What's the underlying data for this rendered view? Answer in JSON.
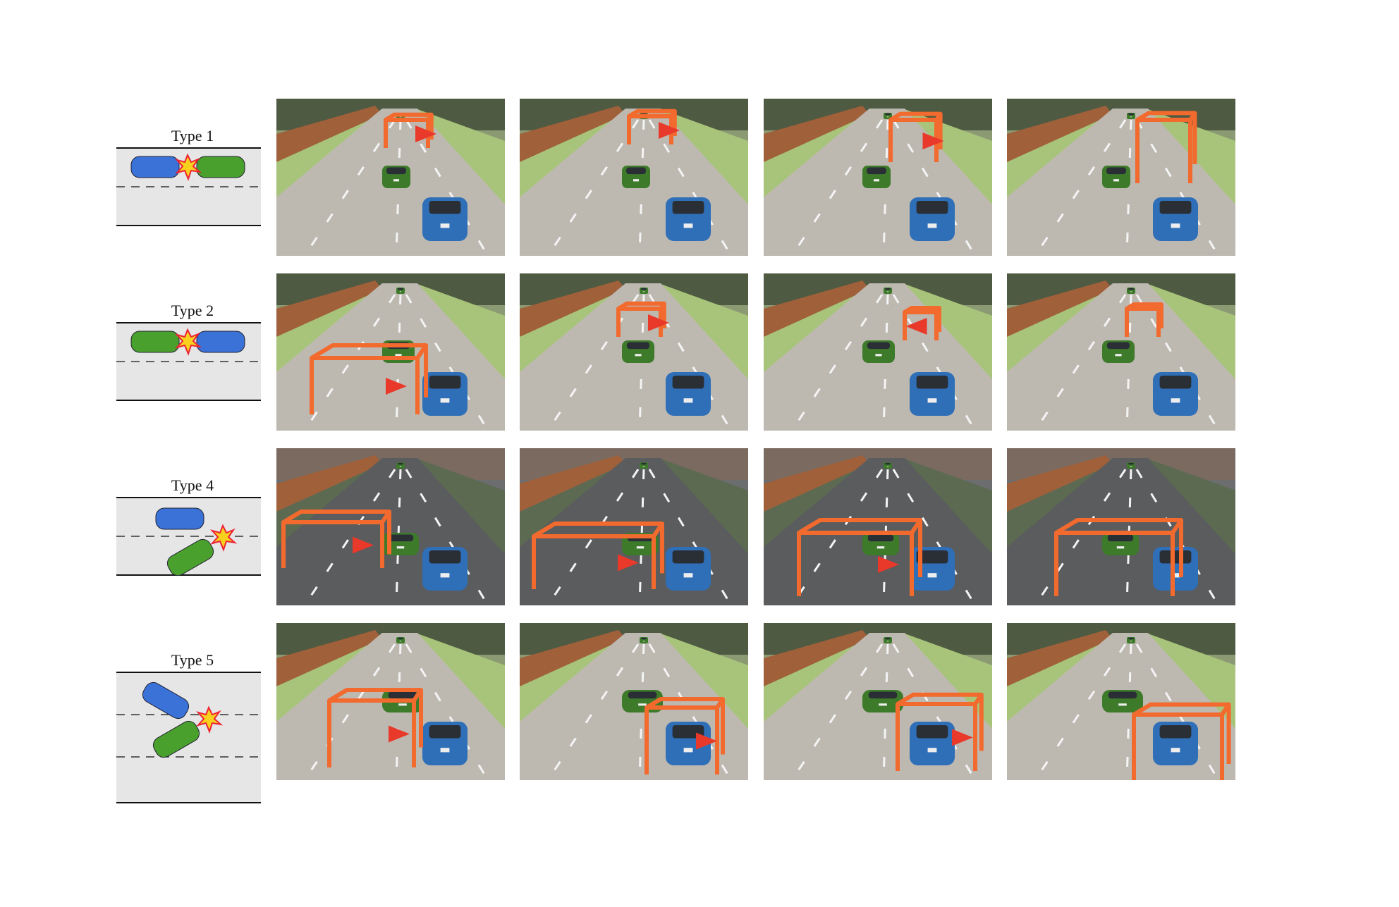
{
  "rows": [
    {
      "label": "Type 1"
    },
    {
      "label": "Type 2"
    },
    {
      "label": "Type 4"
    },
    {
      "label": "Type 5"
    }
  ]
}
